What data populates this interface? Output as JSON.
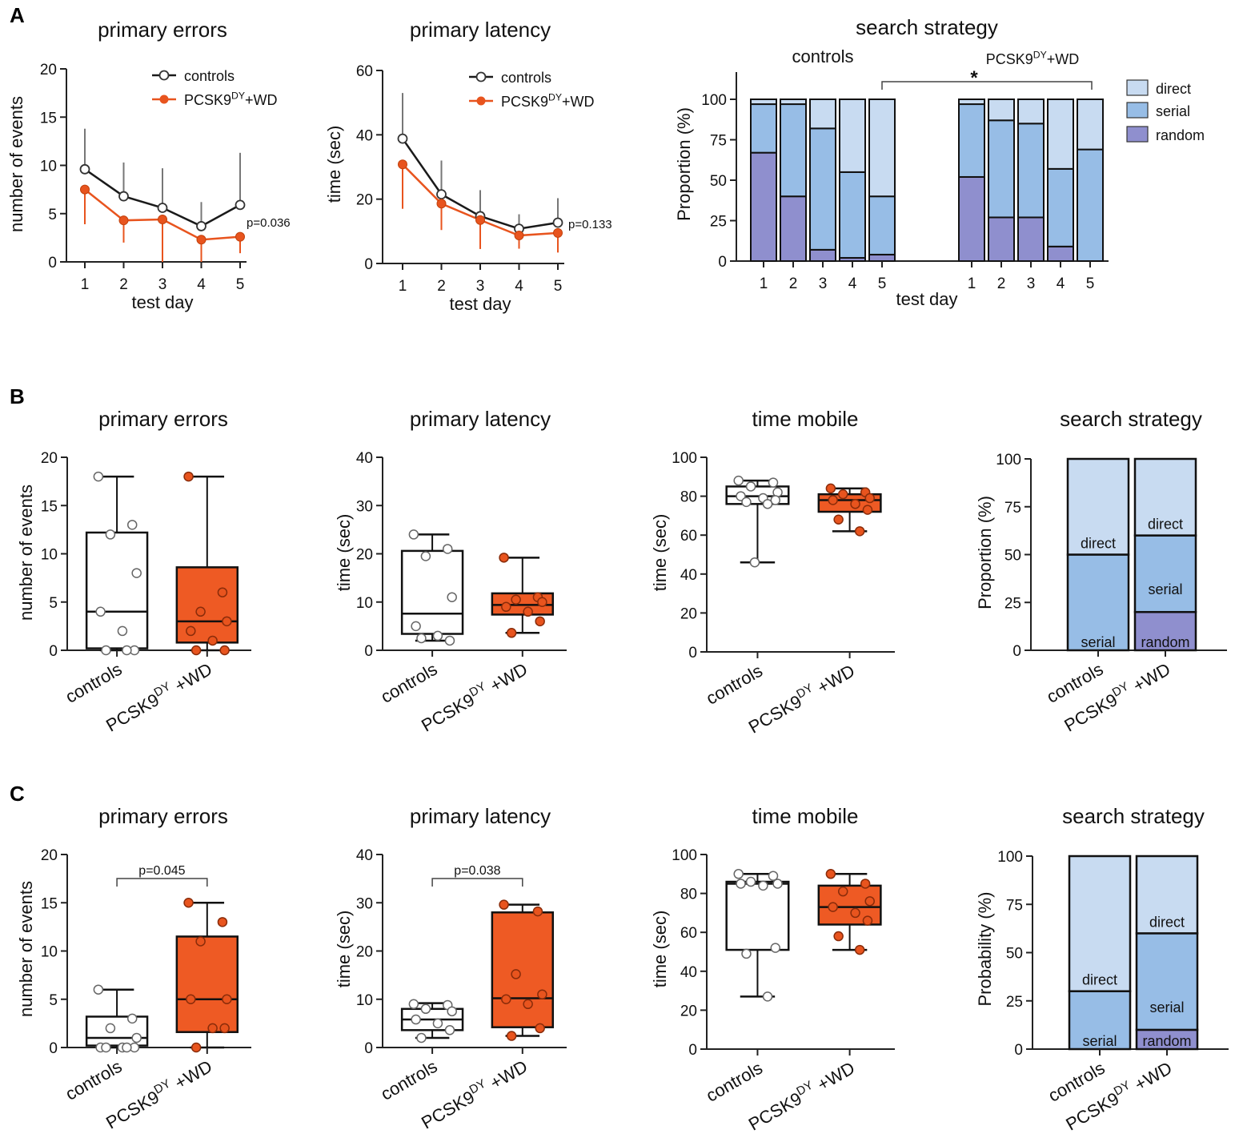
{
  "figure": {
    "panel_labels": [
      "A",
      "B",
      "C"
    ],
    "colors": {
      "controls_fill": "#ffffff",
      "controls_line": "#1a1a1a",
      "pcsk9": "#e8541e",
      "pcsk9_box": "#ee5a24",
      "direct": "#c8dbf1",
      "serial": "#97bde6",
      "random": "#8f8fce"
    }
  },
  "chart_data": [
    {
      "id": "A1",
      "type": "line",
      "title": "primary errors",
      "xlabel": "test day",
      "ylabel": "number of events",
      "x": [
        1,
        2,
        3,
        4,
        5
      ],
      "ylim": [
        0,
        20
      ],
      "yticks": [
        "0",
        "5",
        "10",
        "15",
        "20"
      ],
      "series": [
        {
          "name": "controls",
          "values": [
            9.6,
            6.8,
            5.6,
            3.7,
            5.9
          ],
          "error_up": [
            13.8,
            10.3,
            9.7,
            6.2,
            11.3
          ]
        },
        {
          "name": "PCSK9",
          "name_sup": "DY",
          "name_suffix": "+WD",
          "values": [
            7.5,
            4.3,
            4.4,
            2.3,
            2.6
          ],
          "error_down": [
            3.9,
            2.0,
            0.0,
            0.0,
            0.9
          ]
        }
      ],
      "annotation": "p=0.036"
    },
    {
      "id": "A2",
      "type": "line",
      "title": "primary latency",
      "xlabel": "test day",
      "ylabel": "time (sec)",
      "x": [
        1,
        2,
        3,
        4,
        5
      ],
      "ylim": [
        0,
        60
      ],
      "yticks": [
        "0",
        "20",
        "40",
        "60"
      ],
      "series": [
        {
          "name": "controls",
          "values": [
            38.8,
            21.5,
            14.7,
            10.8,
            12.7
          ],
          "error_up": [
            53.0,
            32.0,
            22.8,
            15.3,
            20.3
          ]
        },
        {
          "name": "PCSK9",
          "name_sup": "DY",
          "name_suffix": "+WD",
          "values": [
            30.8,
            18.6,
            13.5,
            8.7,
            9.5
          ],
          "error_down": [
            17.0,
            10.4,
            4.5,
            4.6,
            3.4
          ]
        }
      ],
      "annotation": "p=0.133"
    },
    {
      "id": "A3",
      "type": "bar",
      "stacked": true,
      "title": "search strategy",
      "xlabel": "test day",
      "ylabel": "Proportion (%)",
      "ylim": [
        0,
        100
      ],
      "yticks": [
        "0",
        "25",
        "50",
        "75",
        "100"
      ],
      "groups": [
        {
          "label": "controls",
          "categories": [
            "1",
            "2",
            "3",
            "4",
            "5"
          ],
          "random": [
            67,
            40,
            7,
            2,
            4
          ],
          "serial": [
            30,
            57,
            75,
            53,
            36
          ],
          "direct": [
            3,
            3,
            18,
            45,
            60
          ]
        },
        {
          "label": "PCSK9",
          "label_sup": "DY",
          "label_suffix": "+WD",
          "categories": [
            "1",
            "2",
            "3",
            "4",
            "5"
          ],
          "random": [
            52,
            27,
            27,
            9,
            0
          ],
          "serial": [
            45,
            60,
            58,
            48,
            69
          ],
          "direct": [
            3,
            13,
            15,
            43,
            31
          ]
        }
      ],
      "legend": [
        "direct",
        "serial",
        "random"
      ],
      "significance": "*"
    },
    {
      "id": "B1",
      "type": "box",
      "title": "primary errors",
      "ylabel": "number of events",
      "ylim": [
        0,
        20
      ],
      "yticks": [
        "0",
        "5",
        "10",
        "15",
        "20"
      ],
      "categories": [
        "controls",
        "PCSK9"
      ],
      "boxes": [
        {
          "group": "controls",
          "min": 0,
          "q1": 0.2,
          "median": 4,
          "q3": 12.2,
          "max": 18,
          "points": [
            18,
            13,
            12,
            8,
            4,
            2,
            0,
            0,
            0
          ]
        },
        {
          "group": "PCSK9",
          "min": 0,
          "q1": 0.8,
          "median": 3,
          "q3": 8.6,
          "max": 18,
          "points": [
            18,
            6,
            4,
            3,
            2,
            1,
            0,
            0
          ]
        }
      ]
    },
    {
      "id": "B2",
      "type": "box",
      "title": "primary latency",
      "ylabel": "time (sec)",
      "ylim": [
        0,
        40
      ],
      "yticks": [
        "0",
        "10",
        "20",
        "30",
        "40"
      ],
      "categories": [
        "controls",
        "PCSK9"
      ],
      "boxes": [
        {
          "group": "controls",
          "min": 2,
          "q1": 3.4,
          "median": 7.6,
          "q3": 20.6,
          "max": 24,
          "points": [
            24,
            21,
            19.5,
            11,
            5,
            3,
            2,
            2.5
          ]
        },
        {
          "group": "PCSK9",
          "min": 3.6,
          "q1": 7.4,
          "median": 9.4,
          "q3": 11.8,
          "max": 19.2,
          "points": [
            19.2,
            11,
            10.5,
            10,
            9,
            8,
            6,
            3.6
          ]
        }
      ]
    },
    {
      "id": "B3",
      "type": "box",
      "title": "time mobile",
      "ylabel": "time (sec)",
      "ylim": [
        0,
        100
      ],
      "yticks": [
        "0",
        "20",
        "40",
        "60",
        "80",
        "100"
      ],
      "categories": [
        "controls",
        "PCSK9"
      ],
      "boxes": [
        {
          "group": "controls",
          "min": 46,
          "q1": 76,
          "median": 80,
          "q3": 85,
          "max": 88,
          "points": [
            88,
            87,
            85,
            82,
            80,
            79,
            78,
            77,
            76,
            46
          ]
        },
        {
          "group": "PCSK9",
          "min": 62,
          "q1": 72,
          "median": 78,
          "q3": 81,
          "max": 84,
          "points": [
            84,
            82,
            81,
            79,
            78,
            76,
            73,
            68,
            62
          ]
        }
      ]
    },
    {
      "id": "B4",
      "type": "bar",
      "stacked": true,
      "title": "search strategy",
      "ylabel": "Proportion (%)",
      "ylim": [
        0,
        100
      ],
      "yticks": [
        "0",
        "25",
        "50",
        "75",
        "100"
      ],
      "categories": [
        "controls",
        "PCSK9"
      ],
      "random": [
        0,
        20
      ],
      "serial": [
        50,
        40
      ],
      "direct": [
        50,
        40
      ],
      "segment_labels": [
        {
          "serial": "serial",
          "direct": "direct"
        },
        {
          "random": "random",
          "serial": "serial",
          "direct": "direct"
        }
      ]
    },
    {
      "id": "C1",
      "type": "box",
      "title": "primary errors",
      "ylabel": "number of events",
      "ylim": [
        0,
        20
      ],
      "yticks": [
        "0",
        "5",
        "10",
        "15",
        "20"
      ],
      "categories": [
        "controls",
        "PCSK9"
      ],
      "boxes": [
        {
          "group": "controls",
          "min": 0,
          "q1": 0.2,
          "median": 1,
          "q3": 3.2,
          "max": 6,
          "points": [
            6,
            3,
            2,
            1,
            0,
            0,
            0,
            0,
            0
          ]
        },
        {
          "group": "PCSK9",
          "min": 0,
          "q1": 1.6,
          "median": 5,
          "q3": 11.5,
          "max": 15,
          "points": [
            15,
            13,
            11,
            5,
            5,
            2,
            2,
            0
          ]
        }
      ],
      "significance": "p=0.045"
    },
    {
      "id": "C2",
      "type": "box",
      "title": "primary latency",
      "ylabel": "time (sec)",
      "ylim": [
        0,
        40
      ],
      "yticks": [
        "0",
        "10",
        "20",
        "30",
        "40"
      ],
      "categories": [
        "controls",
        "PCSK9"
      ],
      "boxes": [
        {
          "group": "controls",
          "min": 2,
          "q1": 3.6,
          "median": 5.8,
          "q3": 8,
          "max": 9.2,
          "points": [
            9,
            8.8,
            8,
            7.5,
            5.8,
            5,
            3.6,
            2
          ]
        },
        {
          "group": "PCSK9",
          "min": 2.4,
          "q1": 4.2,
          "median": 10.2,
          "q3": 28,
          "max": 29.6,
          "points": [
            29.6,
            28.2,
            15.2,
            11,
            10,
            9,
            4,
            2.4
          ]
        }
      ],
      "significance": "p=0.038"
    },
    {
      "id": "C3",
      "type": "box",
      "title": "time mobile",
      "ylabel": "time (sec)",
      "ylim": [
        0,
        100
      ],
      "yticks": [
        "0",
        "20",
        "40",
        "60",
        "80",
        "100"
      ],
      "categories": [
        "controls",
        "PCSK9"
      ],
      "boxes": [
        {
          "group": "controls",
          "min": 27,
          "q1": 51,
          "median": 85,
          "q3": 86,
          "max": 90,
          "points": [
            90,
            89,
            86,
            85,
            85,
            84,
            52,
            49,
            27
          ]
        },
        {
          "group": "PCSK9",
          "min": 51,
          "q1": 64,
          "median": 73,
          "q3": 84,
          "max": 90,
          "points": [
            90,
            85,
            81,
            76,
            73,
            70,
            66,
            58,
            51
          ]
        }
      ]
    },
    {
      "id": "C4",
      "type": "bar",
      "stacked": true,
      "title": "search strategy",
      "ylabel": "Probability (%)",
      "ylim": [
        0,
        100
      ],
      "yticks": [
        "0",
        "25",
        "50",
        "75",
        "100"
      ],
      "categories": [
        "controls",
        "PCSK9"
      ],
      "random": [
        0,
        10
      ],
      "serial": [
        30,
        50
      ],
      "direct": [
        70,
        40
      ],
      "segment_labels": [
        {
          "serial": "serial",
          "direct": "direct"
        },
        {
          "random": "random",
          "serial": "serial",
          "direct": "direct"
        }
      ]
    }
  ],
  "group_labels": {
    "controls": "controls",
    "pcsk9": "PCSK9",
    "pcsk9_sup": "DY",
    "pcsk9_suffix": "+WD"
  }
}
